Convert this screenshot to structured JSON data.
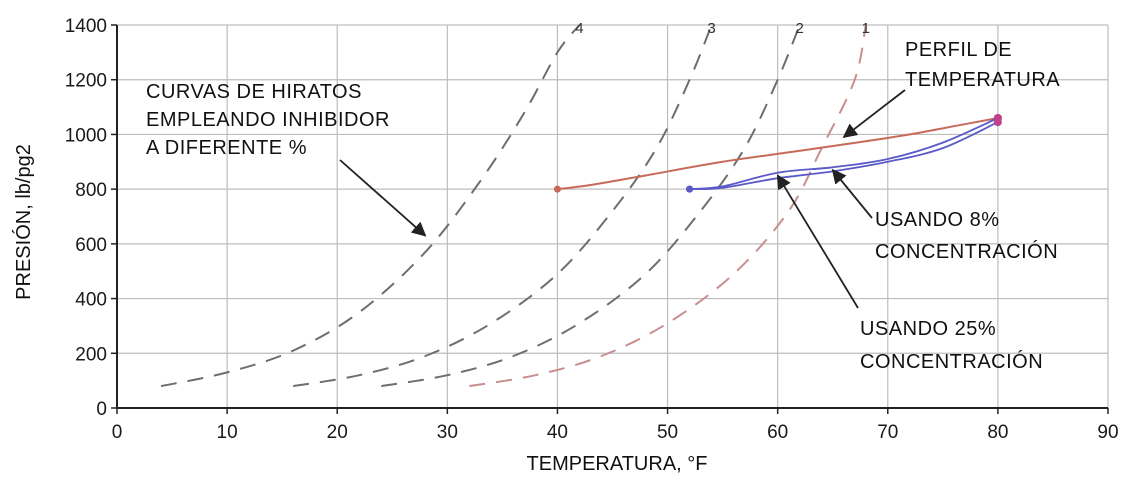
{
  "chart_data": {
    "type": "line",
    "xlabel": "TEMPERATURA, °F",
    "ylabel": "PRESIÓN, lb/pg2",
    "xlim": [
      0,
      90
    ],
    "ylim": [
      0,
      1400
    ],
    "x_ticks": [
      0,
      10,
      20,
      30,
      40,
      50,
      60,
      70,
      80,
      90
    ],
    "y_ticks": [
      0,
      200,
      400,
      600,
      800,
      1000,
      1200,
      1400
    ],
    "grid": true,
    "colors": {
      "grid": "#bdbdbd",
      "curve_dashes": "#6e6e6e",
      "curve_1": "#c98e8e",
      "temperature_profile": "#c86a5a",
      "usage_curves": "#5a5ac8",
      "arrows": "#222222"
    },
    "series": [
      {
        "name": "4",
        "style": "dashed",
        "x": [
          4,
          10,
          16,
          22,
          28,
          33,
          37,
          40,
          42
        ],
        "y": [
          80,
          130,
          210,
          350,
          570,
          830,
          1080,
          1300,
          1400
        ]
      },
      {
        "name": "3",
        "style": "dashed",
        "x": [
          16,
          22,
          28,
          34,
          40,
          45,
          49,
          52,
          54
        ],
        "y": [
          80,
          120,
          190,
          310,
          490,
          720,
          950,
          1200,
          1400
        ]
      },
      {
        "name": "2",
        "style": "dashed",
        "x": [
          24,
          30,
          36,
          42,
          48,
          53,
          57,
          60,
          62
        ],
        "y": [
          80,
          120,
          190,
          310,
          490,
          720,
          950,
          1200,
          1400
        ]
      },
      {
        "name": "1",
        "style": "dashed",
        "x": [
          32,
          38,
          44,
          50,
          56,
          61,
          64,
          67,
          68
        ],
        "y": [
          80,
          120,
          190,
          310,
          490,
          720,
          950,
          1200,
          1400
        ]
      },
      {
        "name": "",
        "role": "temperature_profile",
        "x": [
          40,
          43,
          48,
          55,
          62,
          68,
          72,
          76,
          80
        ],
        "y": [
          800,
          815,
          850,
          900,
          940,
          975,
          1000,
          1030,
          1060
        ]
      },
      {
        "name": "",
        "role": "usando_8",
        "x": [
          52,
          55,
          60,
          65,
          70,
          75,
          80
        ],
        "y": [
          800,
          810,
          860,
          880,
          910,
          970,
          1060
        ]
      },
      {
        "name": "",
        "role": "usando_25",
        "x": [
          52,
          55,
          60,
          65,
          70,
          75,
          80
        ],
        "y": [
          800,
          805,
          840,
          865,
          900,
          950,
          1045
        ]
      }
    ],
    "curve_labels": [
      "4",
      "3",
      "2",
      "1"
    ],
    "annotations": {
      "curvas": [
        "CURVAS DE HIRATOS",
        "EMPLEANDO INHIBIDOR",
        "A DIFERENTE %"
      ],
      "perfil": [
        "PERFIL DE",
        "TEMPERATURA"
      ],
      "usando8": [
        "USANDO 8%",
        "CONCENTRACIÓN"
      ],
      "usando25": [
        "USANDO 25%",
        "CONCENTRACIÓN"
      ]
    }
  }
}
